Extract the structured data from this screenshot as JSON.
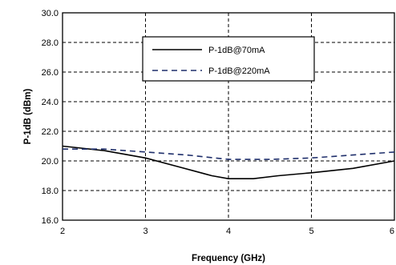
{
  "chart_data": {
    "type": "line",
    "title": "",
    "xlabel": "Frequency (GHz)",
    "ylabel": "P-1dB (dBm)",
    "xlim": [
      2,
      6
    ],
    "ylim": [
      16.0,
      30.0
    ],
    "x_ticks": [
      2,
      3,
      4,
      5,
      6
    ],
    "x_tick_labels": [
      "2",
      "3",
      "4",
      "5",
      "6"
    ],
    "y_ticks": [
      16,
      18,
      20,
      22,
      24,
      26,
      28,
      30
    ],
    "y_tick_labels": [
      "16.0",
      "18.0",
      "20.0",
      "22.0",
      "24.0",
      "26.0",
      "28.0",
      "30.0"
    ],
    "grid": true,
    "legend_position": "top-center",
    "series": [
      {
        "name": "P-1dB@70mA",
        "line_style": "solid",
        "color": "#000000",
        "x": [
          2.0,
          2.5,
          3.0,
          3.4,
          3.8,
          4.0,
          4.3,
          4.6,
          5.0,
          5.5,
          6.0
        ],
        "y": [
          21.0,
          20.7,
          20.2,
          19.6,
          19.0,
          18.8,
          18.8,
          19.0,
          19.2,
          19.5,
          20.0
        ]
      },
      {
        "name": "P-1dB@220mA",
        "line_style": "dashed",
        "color": "#1f2f6b",
        "x": [
          2.0,
          2.5,
          3.0,
          3.5,
          4.0,
          4.5,
          5.0,
          5.5,
          6.0
        ],
        "y": [
          20.8,
          20.8,
          20.6,
          20.4,
          20.1,
          20.1,
          20.2,
          20.4,
          20.6
        ]
      }
    ]
  }
}
